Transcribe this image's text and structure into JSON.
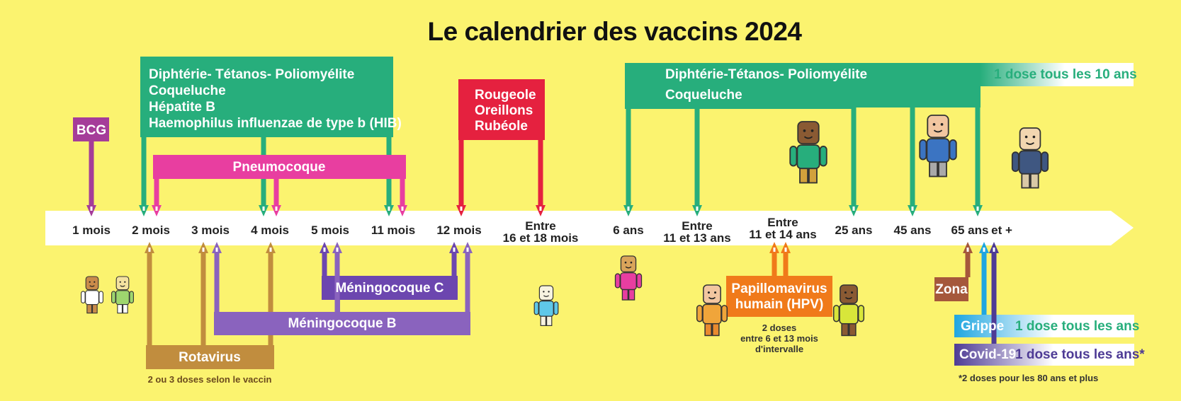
{
  "title": "Le calendrier des vaccins 2024",
  "colors": {
    "background": "#fbf36f",
    "timeline": "#ffffff",
    "bcg": "#a53c99",
    "dtp_infant": "#27ae7c",
    "pneumo": "#e83ea0",
    "ror": "#e5213f",
    "rotavirus": "#c18d3e",
    "meningo": "#8a63be",
    "meningo_c": "#6c46af",
    "hpv": "#f07a1a",
    "zona": "#a5583b",
    "grippe": "#1fa6e0",
    "covid": "#4e3b95"
  },
  "timeline": {
    "ticks": [
      {
        "label": "1 mois"
      },
      {
        "label": "2 mois"
      },
      {
        "label": "3 mois"
      },
      {
        "label": "4 mois"
      },
      {
        "label": "5 mois"
      },
      {
        "label": "11 mois"
      },
      {
        "label": "12 mois"
      },
      {
        "label": "Entre",
        "label2": "16 et 18 mois"
      },
      {
        "label": "6 ans"
      },
      {
        "label": "Entre",
        "label2": "11 et 13 ans"
      },
      {
        "label": "Entre",
        "label2": "11 et 14 ans"
      },
      {
        "label": "25 ans"
      },
      {
        "label": "45 ans"
      },
      {
        "label": "65 ans"
      },
      {
        "label": "et +"
      }
    ]
  },
  "vaccines": {
    "bcg": {
      "label": "BCG"
    },
    "dtp_infant": {
      "lines": [
        "Diphtérie- Tétanos- Poliomyélite",
        "Coqueluche",
        "Hépatite B",
        "Haemophilus influenzae de type b (HIB)"
      ]
    },
    "pneumo": {
      "label": "Pneumocoque"
    },
    "ror": {
      "lines": [
        "Rougeole",
        "Oreillons",
        "Rubéole"
      ]
    },
    "dtp_adult": {
      "line1": "Diphtérie-Tétanos- Poliomyélite",
      "line2": "Coqueluche",
      "booster": "1 dose tous les 10 ans"
    },
    "rotavirus": {
      "label": "Rotavirus",
      "note": "2 ou 3 doses selon le vaccin"
    },
    "meningo_c": {
      "label": "Méningocoque C"
    },
    "meningo_b": {
      "label": "Méningocoque B"
    },
    "hpv": {
      "lines": [
        "Papillomavirus",
        "humain (HPV)"
      ],
      "note": [
        "2 doses",
        "entre 6 et 13 mois",
        "d'intervalle"
      ]
    },
    "zona": {
      "label": "Zona"
    },
    "grippe": {
      "label": "Grippe",
      "freq": "1 dose tous les ans"
    },
    "covid": {
      "label": "Covid-19",
      "freq": "1 dose tous les ans*",
      "note": "*2 doses pour les 80 ans et plus"
    }
  }
}
